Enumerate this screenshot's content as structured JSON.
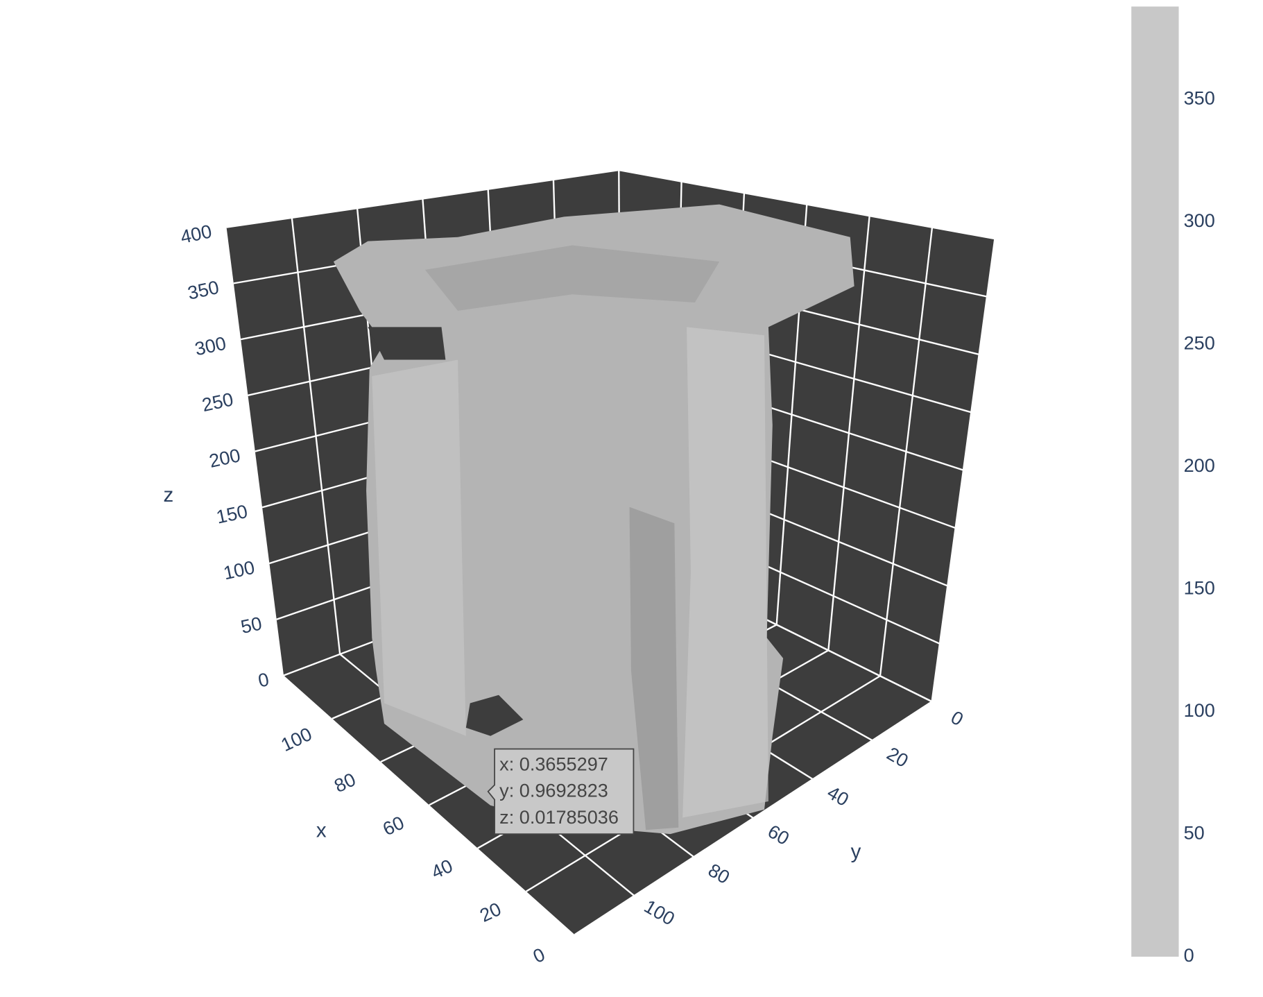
{
  "chart_data": {
    "type": "isosurface",
    "xlabel": "x",
    "ylabel": "y",
    "zlabel": "z",
    "xlim": [
      0,
      120
    ],
    "ylim": [
      0,
      120
    ],
    "zlim": [
      0,
      400
    ],
    "xticks": [
      0,
      20,
      40,
      60,
      80,
      100
    ],
    "yticks": [
      0,
      20,
      40,
      60,
      80,
      100
    ],
    "zticks": [
      0,
      50,
      100,
      150,
      200,
      250,
      300,
      350,
      400
    ],
    "grid": true,
    "bgcolor": "#3d3d3d",
    "gridcolor": "#ffffff",
    "surface_color": "#b4b4b4",
    "colorbar": {
      "lim": [
        0,
        388
      ],
      "ticks": [
        0,
        50,
        100,
        150,
        200,
        250,
        300,
        350
      ],
      "color": "#c8c8c8"
    },
    "hover": {
      "lines": [
        "x: 0.3655297",
        "y: 0.9692823",
        "z: 0.01785036"
      ]
    }
  }
}
